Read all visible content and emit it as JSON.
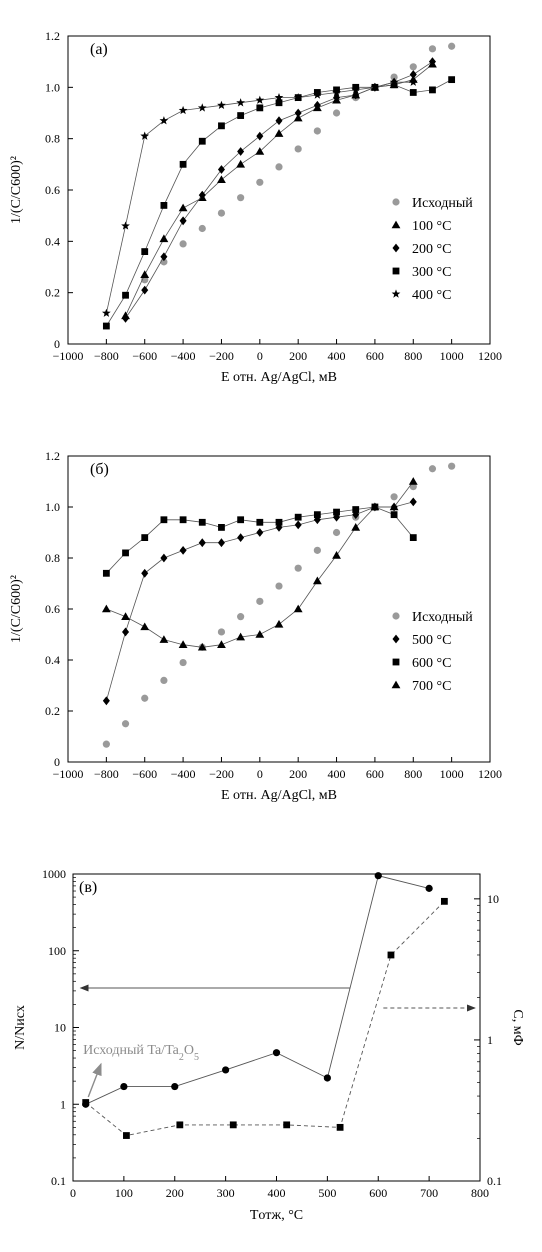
{
  "chart_data": [
    {
      "type": "scatter",
      "panel_label": "(а)",
      "xlabel": "E отн. Ag/AgCl, мВ",
      "ylabel": "1/(C/C600)²",
      "xlim": [
        -1000,
        1200
      ],
      "ylim": [
        0,
        1.2
      ],
      "x_ticks": [
        "−1000",
        "−800",
        "−600",
        "−400",
        "−200",
        "0",
        "200",
        "400",
        "600",
        "800",
        "1000",
        "1200"
      ],
      "y_ticks": [
        "0",
        "0.2",
        "0.4",
        "0.6",
        "0.8",
        "1.0",
        "1.2"
      ],
      "legend_position": "right",
      "series": [
        {
          "name": "Исходный",
          "marker": "circle",
          "color": "#9a9a9a",
          "x": [
            -600,
            -500,
            -400,
            -300,
            -200,
            -100,
            0,
            100,
            200,
            300,
            400,
            500,
            600,
            700,
            800,
            900,
            1000
          ],
          "y": [
            0.25,
            0.32,
            0.39,
            0.45,
            0.51,
            0.57,
            0.63,
            0.69,
            0.76,
            0.83,
            0.9,
            0.96,
            1.0,
            1.04,
            1.08,
            1.15,
            1.16
          ]
        },
        {
          "name": "100 °С",
          "marker": "triangle",
          "color": "#000000",
          "x": [
            -700,
            -600,
            -500,
            -400,
            -300,
            -200,
            -100,
            0,
            100,
            200,
            300,
            400,
            500,
            600,
            700,
            800,
            900
          ],
          "y": [
            0.11,
            0.27,
            0.41,
            0.53,
            0.57,
            0.64,
            0.7,
            0.75,
            0.82,
            0.88,
            0.92,
            0.95,
            0.97,
            1.0,
            1.01,
            1.03,
            1.09
          ]
        },
        {
          "name": "200 °С",
          "marker": "diamond",
          "color": "#000000",
          "x": [
            -700,
            -600,
            -500,
            -400,
            -300,
            -200,
            -100,
            0,
            100,
            200,
            300,
            400,
            500,
            600,
            700,
            800,
            900
          ],
          "y": [
            0.1,
            0.21,
            0.34,
            0.48,
            0.58,
            0.68,
            0.75,
            0.81,
            0.87,
            0.9,
            0.93,
            0.96,
            0.97,
            1.0,
            1.02,
            1.05,
            1.1
          ]
        },
        {
          "name": "300 °С",
          "marker": "square",
          "color": "#000000",
          "x": [
            -800,
            -700,
            -600,
            -500,
            -400,
            -300,
            -200,
            -100,
            0,
            100,
            200,
            300,
            400,
            500,
            600,
            700,
            800,
            900,
            1000
          ],
          "y": [
            0.07,
            0.19,
            0.36,
            0.54,
            0.7,
            0.79,
            0.85,
            0.89,
            0.92,
            0.94,
            0.96,
            0.98,
            0.99,
            1.0,
            1.0,
            1.01,
            0.98,
            0.99,
            1.03
          ]
        },
        {
          "name": "400 °С",
          "marker": "star",
          "color": "#000000",
          "x": [
            -800,
            -700,
            -600,
            -500,
            -400,
            -300,
            -200,
            -100,
            0,
            100,
            200,
            300,
            400,
            500,
            600,
            700,
            800
          ],
          "y": [
            0.12,
            0.46,
            0.81,
            0.87,
            0.91,
            0.92,
            0.93,
            0.94,
            0.95,
            0.96,
            0.96,
            0.97,
            0.98,
            0.99,
            1.0,
            1.02,
            1.02
          ]
        }
      ]
    },
    {
      "type": "scatter",
      "panel_label": "(б)",
      "xlabel": "E отн. Ag/AgCl, мВ",
      "ylabel": "1/(C/C600)²",
      "xlim": [
        -1000,
        1200
      ],
      "ylim": [
        0,
        1.2
      ],
      "x_ticks": [
        "−1000",
        "−800",
        "−600",
        "−400",
        "−200",
        "0",
        "200",
        "400",
        "600",
        "800",
        "1000",
        "1200"
      ],
      "y_ticks": [
        "0",
        "0.2",
        "0.4",
        "0.6",
        "0.8",
        "1.0",
        "1.2"
      ],
      "legend_position": "right",
      "series": [
        {
          "name": "Исходный",
          "marker": "circle",
          "color": "#9a9a9a",
          "x": [
            -800,
            -700,
            -600,
            -500,
            -400,
            -300,
            -200,
            -100,
            0,
            100,
            200,
            300,
            400,
            500,
            600,
            700,
            800,
            900,
            1000
          ],
          "y": [
            0.07,
            0.15,
            0.25,
            0.32,
            0.39,
            0.45,
            0.51,
            0.57,
            0.63,
            0.69,
            0.76,
            0.83,
            0.9,
            0.96,
            1.0,
            1.04,
            1.08,
            1.15,
            1.16
          ]
        },
        {
          "name": "500 °С",
          "marker": "diamond",
          "color": "#000000",
          "x": [
            -800,
            -700,
            -600,
            -500,
            -400,
            -300,
            -200,
            -100,
            0,
            100,
            200,
            300,
            400,
            500,
            600,
            700,
            800
          ],
          "y": [
            0.24,
            0.51,
            0.74,
            0.8,
            0.83,
            0.86,
            0.86,
            0.88,
            0.9,
            0.92,
            0.93,
            0.95,
            0.96,
            0.97,
            1.0,
            1.0,
            1.02
          ]
        },
        {
          "name": "600 °С",
          "marker": "square",
          "color": "#000000",
          "x": [
            -800,
            -700,
            -600,
            -500,
            -400,
            -300,
            -200,
            -100,
            0,
            100,
            200,
            300,
            400,
            500,
            600,
            700,
            800
          ],
          "y": [
            0.74,
            0.82,
            0.88,
            0.95,
            0.95,
            0.94,
            0.92,
            0.95,
            0.94,
            0.94,
            0.96,
            0.97,
            0.98,
            0.99,
            1.0,
            0.97,
            0.88
          ]
        },
        {
          "name": "700 °С",
          "marker": "triangle",
          "color": "#000000",
          "x": [
            -800,
            -700,
            -600,
            -500,
            -400,
            -300,
            -200,
            -100,
            0,
            100,
            200,
            300,
            400,
            500,
            600,
            700,
            800
          ],
          "y": [
            0.6,
            0.57,
            0.53,
            0.48,
            0.46,
            0.45,
            0.46,
            0.49,
            0.5,
            0.54,
            0.6,
            0.71,
            0.81,
            0.92,
            1.0,
            1.0,
            1.1
          ]
        }
      ]
    },
    {
      "type": "line",
      "panel_label": "(в)",
      "xlabel": "Tотж, °С",
      "ylabel_left": "N/Nисх",
      "ylabel_right": "C, мФ",
      "xlim": [
        0,
        800
      ],
      "ylim_left": [
        0.1,
        1000
      ],
      "ylim_right": [
        0.1,
        15
      ],
      "log_y": true,
      "x_ticks": [
        "0",
        "100",
        "200",
        "300",
        "400",
        "500",
        "600",
        "700",
        "800"
      ],
      "y_ticks_left": [
        "0.1",
        "1",
        "10",
        "100",
        "1000"
      ],
      "y_ticks_right": [
        "0.1",
        "1",
        "10"
      ],
      "annotation": "Исходный Ta/Ta2O5",
      "series": [
        {
          "name": "N/Nисх",
          "axis": "left",
          "marker": "circle",
          "line": "solid",
          "x": [
            25,
            100,
            200,
            300,
            400,
            500,
            600,
            700
          ],
          "y": [
            1.0,
            1.7,
            1.7,
            2.8,
            4.7,
            2.2,
            950,
            650
          ]
        },
        {
          "name": "C",
          "axis": "right",
          "marker": "square",
          "line": "dashed",
          "x": [
            25,
            105,
            210,
            315,
            420,
            525,
            625,
            730
          ],
          "y": [
            0.36,
            0.21,
            0.25,
            0.25,
            0.25,
            0.24,
            4.0,
            9.6
          ]
        }
      ]
    }
  ]
}
